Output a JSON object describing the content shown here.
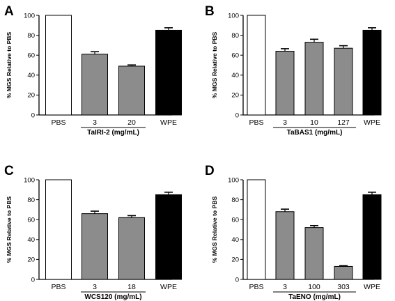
{
  "chart_data": [
    {
      "panel": "A",
      "type": "bar",
      "ylabel": "% MGS Relative to PBS",
      "ylim": [
        0,
        100
      ],
      "yticks": [
        0,
        20,
        40,
        60,
        80,
        100
      ],
      "categories": [
        "PBS",
        "3",
        "20",
        "WPE"
      ],
      "group_label": "TaIRI-2 (mg/mL)",
      "group_members": [
        "3",
        "20"
      ],
      "values": [
        100,
        61,
        49,
        85
      ],
      "errors": [
        0,
        2.5,
        1.2,
        2.5
      ],
      "bar_colors": [
        "#ffffff",
        "#8c8c8c",
        "#8c8c8c",
        "#000000"
      ]
    },
    {
      "panel": "B",
      "type": "bar",
      "ylabel": "% MGS Relative to PBS",
      "ylim": [
        0,
        100
      ],
      "yticks": [
        0,
        20,
        40,
        60,
        80,
        100
      ],
      "categories": [
        "PBS",
        "3",
        "10",
        "127",
        "WPE"
      ],
      "group_label": "TaBAS1 (mg/mL)",
      "group_members": [
        "3",
        "10",
        "127"
      ],
      "values": [
        100,
        64,
        73,
        67,
        85
      ],
      "errors": [
        0,
        2.5,
        3,
        2.5,
        2.5
      ],
      "bar_colors": [
        "#ffffff",
        "#8c8c8c",
        "#8c8c8c",
        "#8c8c8c",
        "#000000"
      ]
    },
    {
      "panel": "C",
      "type": "bar",
      "ylabel": "% MGS Relative to PBS",
      "ylim": [
        0,
        100
      ],
      "yticks": [
        0,
        20,
        40,
        60,
        80,
        100
      ],
      "categories": [
        "PBS",
        "3",
        "18",
        "WPE"
      ],
      "group_label": "WCS120 (mg/mL)",
      "group_members": [
        "3",
        "18"
      ],
      "values": [
        100,
        66,
        62,
        85
      ],
      "errors": [
        0,
        2.5,
        2,
        2.5
      ],
      "bar_colors": [
        "#ffffff",
        "#8c8c8c",
        "#8c8c8c",
        "#000000"
      ]
    },
    {
      "panel": "D",
      "type": "bar",
      "ylabel": "% MGS Relative to PBS",
      "ylim": [
        0,
        100
      ],
      "yticks": [
        0,
        20,
        40,
        60,
        80,
        100
      ],
      "categories": [
        "PBS",
        "3",
        "100",
        "303",
        "WPE"
      ],
      "group_label": "TaENO (mg/mL)",
      "group_members": [
        "3",
        "100",
        "303"
      ],
      "values": [
        100,
        68,
        52,
        13,
        85
      ],
      "errors": [
        0,
        2.5,
        2,
        0.8,
        2.5
      ],
      "bar_colors": [
        "#ffffff",
        "#8c8c8c",
        "#8c8c8c",
        "#8c8c8c",
        "#000000"
      ]
    }
  ]
}
